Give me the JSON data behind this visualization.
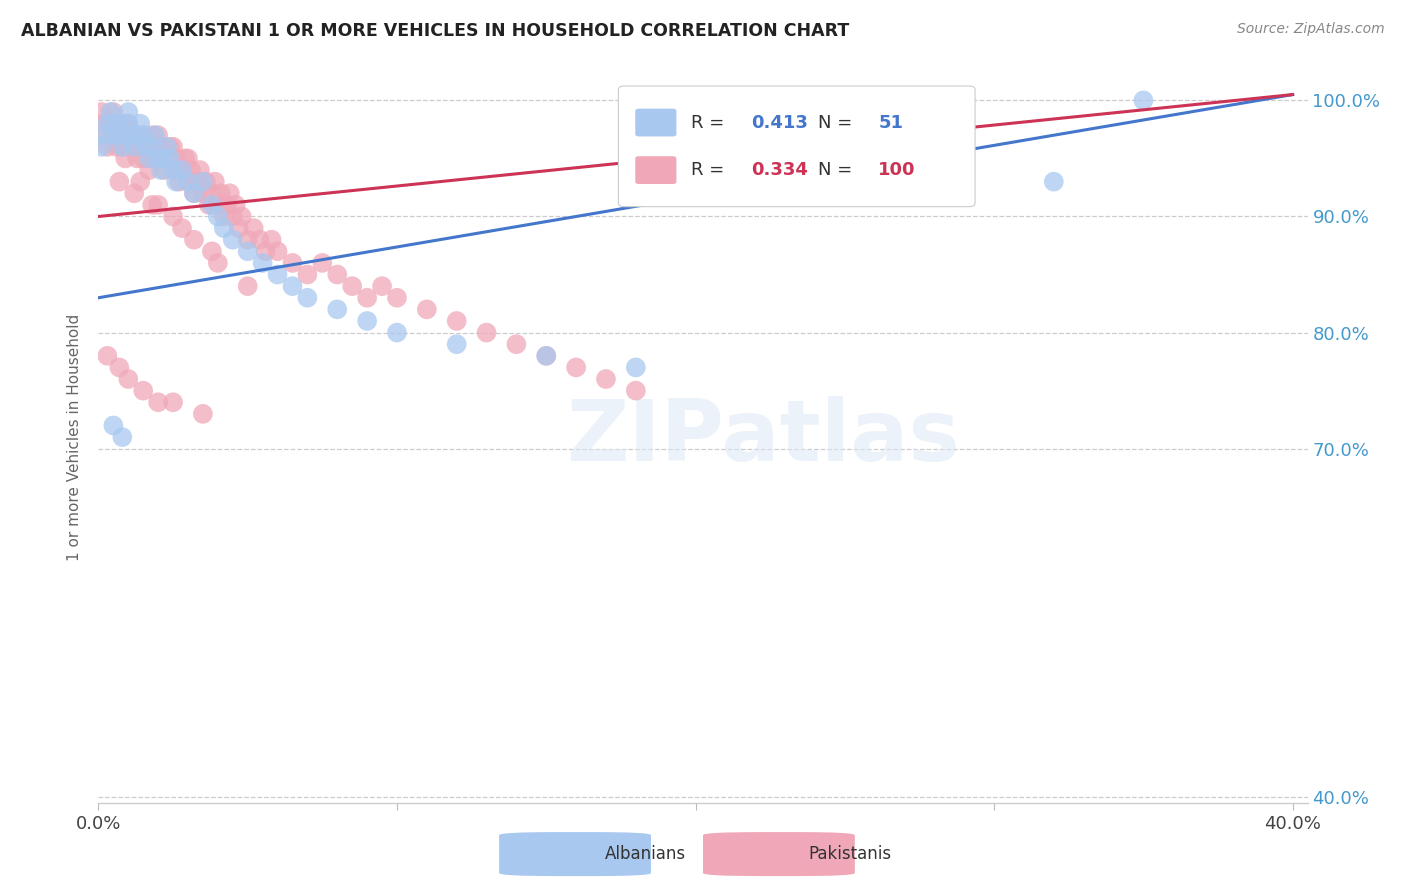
{
  "title": "ALBANIAN VS PAKISTANI 1 OR MORE VEHICLES IN HOUSEHOLD CORRELATION CHART",
  "source": "Source: ZipAtlas.com",
  "ylabel": "1 or more Vehicles in Household",
  "ytick_labels": [
    "100.0%",
    "90.0%",
    "80.0%",
    "70.0%",
    "40.0%"
  ],
  "ytick_values": [
    1.0,
    0.9,
    0.8,
    0.7,
    0.4
  ],
  "xtick_values": [
    0.0,
    0.1,
    0.2,
    0.3,
    0.4
  ],
  "xtick_labels": [
    "0.0%",
    "",
    "",
    "",
    "40.0%"
  ],
  "xlim": [
    0.0,
    0.405
  ],
  "ylim": [
    0.395,
    1.025
  ],
  "R_albanian": 0.413,
  "N_albanian": 51,
  "R_pakistani": 0.334,
  "N_pakistani": 100,
  "albanian_color": "#a8c8f0",
  "pakistani_color": "#f0a8b8",
  "line_albanian_color": "#4477cc",
  "line_pakistani_color": "#cc3355",
  "watermark_text": "ZIPatlas",
  "albanian_x": [
    0.001,
    0.002,
    0.003,
    0.004,
    0.005,
    0.005,
    0.006,
    0.007,
    0.008,
    0.009,
    0.01,
    0.01,
    0.011,
    0.012,
    0.013,
    0.014,
    0.015,
    0.016,
    0.017,
    0.018,
    0.019,
    0.02,
    0.021,
    0.022,
    0.023,
    0.024,
    0.025,
    0.026,
    0.028,
    0.03,
    0.032,
    0.035,
    0.038,
    0.04,
    0.042,
    0.045,
    0.05,
    0.055,
    0.06,
    0.065,
    0.07,
    0.08,
    0.09,
    0.1,
    0.12,
    0.15,
    0.18,
    0.005,
    0.008,
    0.35,
    0.32
  ],
  "albanian_y": [
    0.96,
    0.97,
    0.98,
    0.99,
    0.98,
    0.97,
    0.97,
    0.98,
    0.96,
    0.97,
    0.98,
    0.99,
    0.97,
    0.96,
    0.97,
    0.98,
    0.97,
    0.96,
    0.95,
    0.96,
    0.97,
    0.95,
    0.94,
    0.95,
    0.96,
    0.95,
    0.94,
    0.93,
    0.94,
    0.93,
    0.92,
    0.93,
    0.91,
    0.9,
    0.89,
    0.88,
    0.87,
    0.86,
    0.85,
    0.84,
    0.83,
    0.82,
    0.81,
    0.8,
    0.79,
    0.78,
    0.77,
    0.72,
    0.71,
    1.0,
    0.93
  ],
  "pakistani_x": [
    0.001,
    0.002,
    0.003,
    0.004,
    0.005,
    0.005,
    0.006,
    0.007,
    0.008,
    0.008,
    0.009,
    0.01,
    0.01,
    0.011,
    0.012,
    0.012,
    0.013,
    0.014,
    0.015,
    0.015,
    0.016,
    0.017,
    0.018,
    0.018,
    0.019,
    0.02,
    0.02,
    0.021,
    0.022,
    0.023,
    0.024,
    0.025,
    0.025,
    0.026,
    0.027,
    0.028,
    0.029,
    0.03,
    0.03,
    0.031,
    0.032,
    0.033,
    0.034,
    0.035,
    0.036,
    0.037,
    0.038,
    0.039,
    0.04,
    0.041,
    0.042,
    0.043,
    0.044,
    0.045,
    0.046,
    0.047,
    0.048,
    0.05,
    0.052,
    0.054,
    0.056,
    0.058,
    0.06,
    0.065,
    0.07,
    0.075,
    0.08,
    0.085,
    0.09,
    0.095,
    0.1,
    0.11,
    0.12,
    0.13,
    0.14,
    0.15,
    0.16,
    0.17,
    0.18,
    0.007,
    0.012,
    0.018,
    0.025,
    0.032,
    0.04,
    0.05,
    0.003,
    0.006,
    0.009,
    0.014,
    0.02,
    0.028,
    0.038,
    0.003,
    0.007,
    0.015,
    0.025,
    0.01,
    0.02,
    0.035
  ],
  "pakistani_y": [
    0.99,
    0.98,
    0.97,
    0.98,
    0.99,
    0.97,
    0.96,
    0.97,
    0.96,
    0.98,
    0.97,
    0.96,
    0.98,
    0.97,
    0.96,
    0.97,
    0.95,
    0.96,
    0.97,
    0.95,
    0.96,
    0.94,
    0.95,
    0.97,
    0.96,
    0.95,
    0.97,
    0.96,
    0.94,
    0.95,
    0.96,
    0.94,
    0.96,
    0.95,
    0.93,
    0.94,
    0.95,
    0.93,
    0.95,
    0.94,
    0.92,
    0.93,
    0.94,
    0.92,
    0.93,
    0.91,
    0.92,
    0.93,
    0.91,
    0.92,
    0.9,
    0.91,
    0.92,
    0.9,
    0.91,
    0.89,
    0.9,
    0.88,
    0.89,
    0.88,
    0.87,
    0.88,
    0.87,
    0.86,
    0.85,
    0.86,
    0.85,
    0.84,
    0.83,
    0.84,
    0.83,
    0.82,
    0.81,
    0.8,
    0.79,
    0.78,
    0.77,
    0.76,
    0.75,
    0.93,
    0.92,
    0.91,
    0.9,
    0.88,
    0.86,
    0.84,
    0.96,
    0.97,
    0.95,
    0.93,
    0.91,
    0.89,
    0.87,
    0.78,
    0.77,
    0.75,
    0.74,
    0.76,
    0.74,
    0.73
  ],
  "line_albanian_x0": 0.0,
  "line_albanian_y0": 0.83,
  "line_albanian_x1": 0.4,
  "line_albanian_y1": 1.005,
  "line_pakistani_x0": 0.0,
  "line_pakistani_y0": 0.9,
  "line_pakistani_x1": 0.4,
  "line_pakistani_y1": 1.005
}
